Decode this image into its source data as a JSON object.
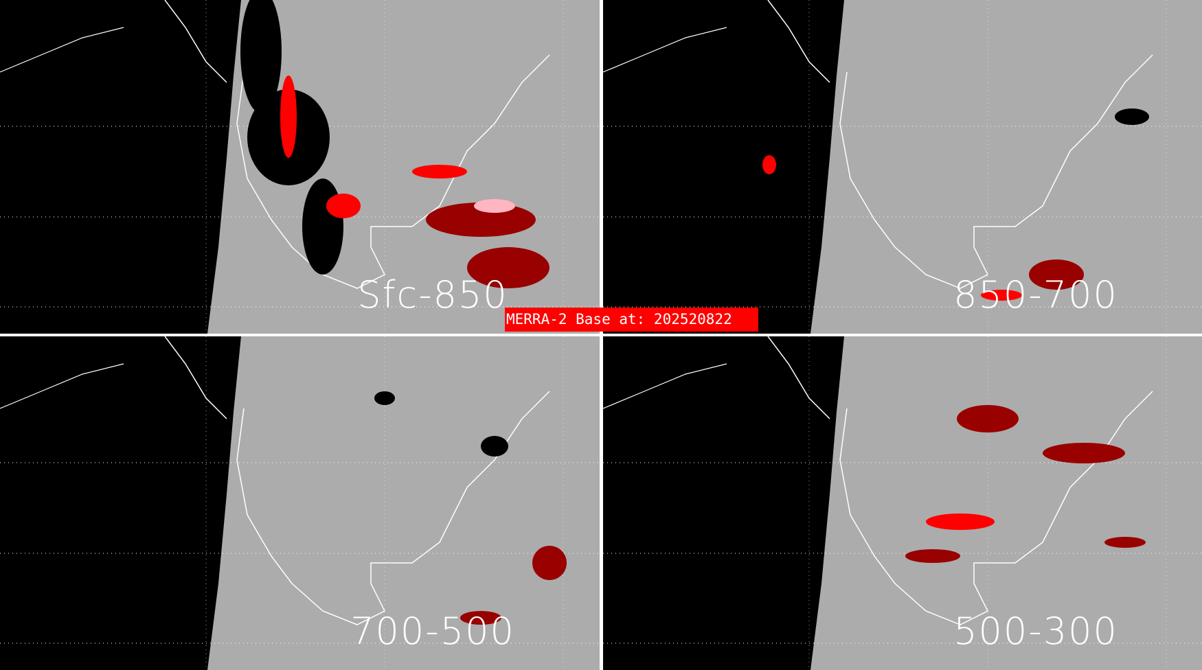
{
  "title": "MERRA-2 Base at: 202520822",
  "colors": {
    "land": "#acacac",
    "ocean": "#000000",
    "coast": "#ffffff",
    "red": "#ff0000",
    "dark_red": "#990000",
    "pink": "#ffb6c1",
    "label_bg": "#ff0000"
  },
  "panels": [
    {
      "label": "Sfc-850"
    },
    {
      "label": "850-700"
    },
    {
      "label": "700-500"
    },
    {
      "label": "500-300"
    }
  ]
}
